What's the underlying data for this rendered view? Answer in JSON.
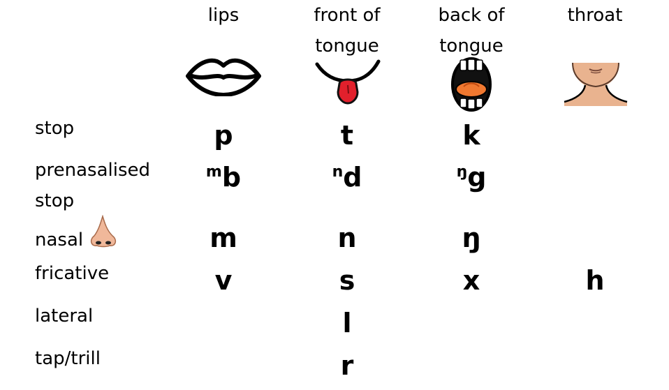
{
  "columns": [
    {
      "label": "lips",
      "icon": "lips-icon"
    },
    {
      "label": "front of\ntongue",
      "icon": "tongue-tip-icon"
    },
    {
      "label": "back of\ntongue",
      "icon": "open-mouth-icon"
    },
    {
      "label": "throat",
      "icon": "throat-icon"
    }
  ],
  "rows": [
    {
      "label": "stop",
      "cells": [
        "p",
        "t",
        "k",
        ""
      ]
    },
    {
      "label": "prenasalised\nstop",
      "cells": [
        {
          "sup": "m",
          "base": "b"
        },
        {
          "sup": "n",
          "base": "d"
        },
        {
          "sup": "ŋ",
          "base": "g"
        },
        ""
      ]
    },
    {
      "label": "nasal",
      "icon": "nose-icon",
      "cells": [
        "m",
        "n",
        "ŋ",
        ""
      ]
    },
    {
      "label": "fricative",
      "cells": [
        "v",
        "s",
        "x",
        "h"
      ]
    },
    {
      "label": "lateral",
      "cells": [
        "",
        "l",
        "",
        ""
      ]
    },
    {
      "label": "tap/trill",
      "cells": [
        "",
        "r",
        "",
        ""
      ]
    }
  ],
  "colors": {
    "text": "#000000",
    "tongue": "#e2202c",
    "mouth_interior": "#f07830",
    "skin": "#e9b38f",
    "nose": "#f0b89a"
  }
}
